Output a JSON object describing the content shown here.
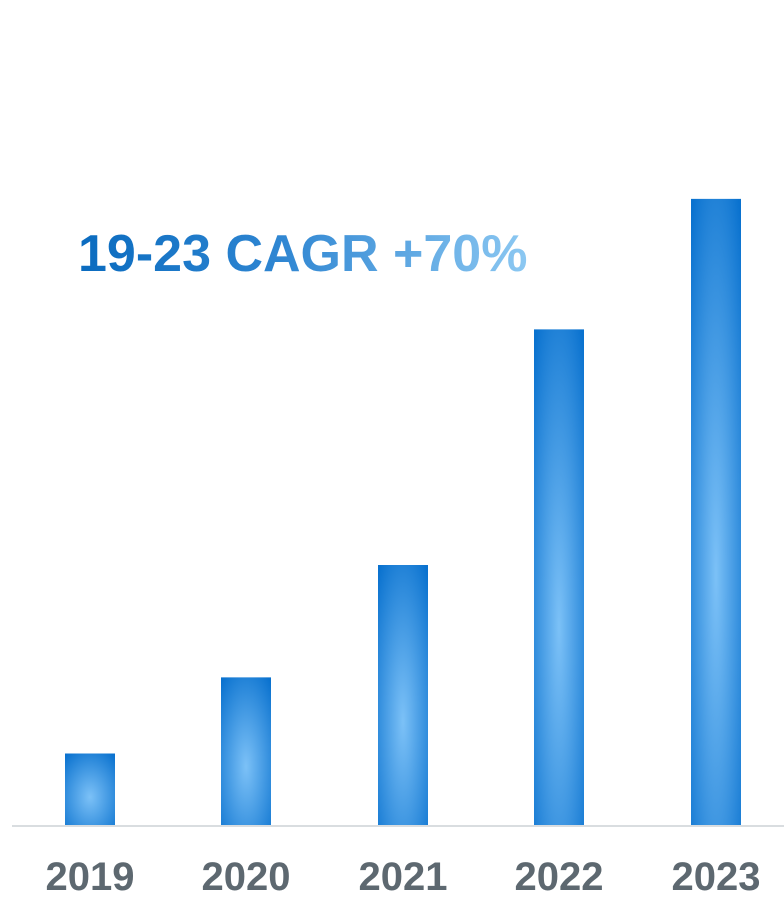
{
  "chart_data": {
    "type": "bar",
    "categories": [
      "2019",
      "2020",
      "2021",
      "2022",
      "2023"
    ],
    "values": [
      1.0,
      2.05,
      3.6,
      6.85,
      8.65
    ],
    "title": "",
    "xlabel": "",
    "ylabel": "",
    "ylim": [
      0,
      10
    ],
    "grid": false,
    "annotation": "19-23 CAGR +70%",
    "colors": {
      "bar_edge": "#0a72cf",
      "bar_center": "#7cc1f7",
      "axis_line": "#d9dde0",
      "tick_label": "#5d6870",
      "annotation_start": "#0a6bbf",
      "annotation_end": "#8cc8f2"
    }
  }
}
